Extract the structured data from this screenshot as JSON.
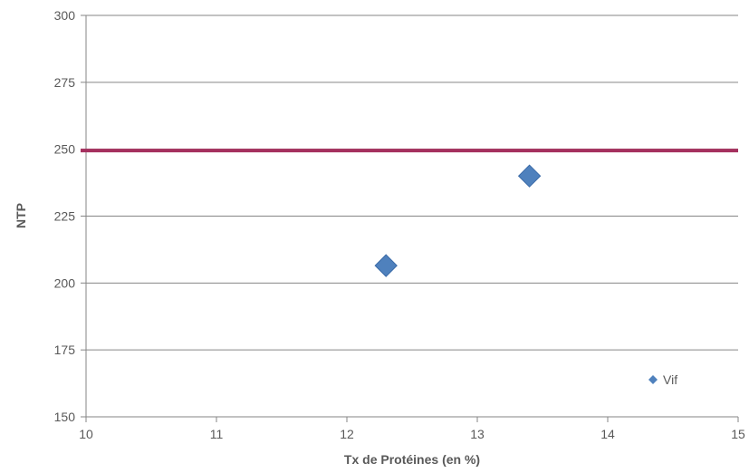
{
  "chart_data": {
    "type": "scatter",
    "xlabel": "Tx de Protéines (en %)",
    "ylabel": "NTP",
    "xlim": [
      10,
      15
    ],
    "ylim": [
      150,
      300
    ],
    "xticks": [
      10,
      11,
      12,
      13,
      14,
      15
    ],
    "yticks": [
      150,
      175,
      200,
      225,
      250,
      275,
      300
    ],
    "grid": "horizontal",
    "legend_position": "bottom-right",
    "series": [
      {
        "name": "Vif",
        "marker": "diamond",
        "color": "#4F81BD",
        "points": [
          {
            "x": 12.3,
            "y": 206.5
          },
          {
            "x": 13.4,
            "y": 240
          }
        ]
      }
    ],
    "reference_lines": [
      {
        "axis": "y",
        "value": 249.5,
        "color": "#A5305E"
      }
    ]
  }
}
